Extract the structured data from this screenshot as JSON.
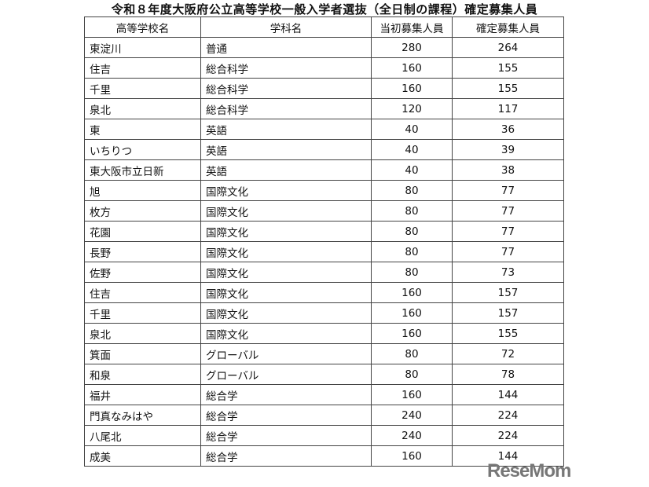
{
  "title": "令和８年度大阪府公立高等学校一般入学者選抜（全日制の課程）確定募集人員",
  "headers": [
    "高等学校名",
    "学科名",
    "当初募集人員",
    "確定募集人員"
  ],
  "rows": [
    [
      "東淀川",
      "普通",
      "280",
      "264"
    ],
    [
      "住吉",
      "総合科学",
      "160",
      "155"
    ],
    [
      "千里",
      "総合科学",
      "160",
      "155"
    ],
    [
      "泉北",
      "総合科学",
      "120",
      "117"
    ],
    [
      "東",
      "英語",
      "40",
      "36"
    ],
    [
      "いちりつ",
      "英語",
      "40",
      "39"
    ],
    [
      "東大阪市立日新",
      "英語",
      "40",
      "38"
    ],
    [
      "旭",
      "国際文化",
      "80",
      "77"
    ],
    [
      "枚方",
      "国際文化",
      "80",
      "77"
    ],
    [
      "花園",
      "国際文化",
      "80",
      "77"
    ],
    [
      "長野",
      "国際文化",
      "80",
      "77"
    ],
    [
      "佐野",
      "国際文化",
      "80",
      "73"
    ],
    [
      "住吉",
      "国際文化",
      "160",
      "157"
    ],
    [
      "千里",
      "国際文化",
      "160",
      "157"
    ],
    [
      "泉北",
      "国際文化",
      "160",
      "155"
    ],
    [
      "箕面",
      "グローバル",
      "80",
      "72"
    ],
    [
      "和泉",
      "グローバル",
      "80",
      "78"
    ],
    [
      "福井",
      "総合学",
      "160",
      "144"
    ],
    [
      "門真なみはや",
      "総合学",
      "240",
      "224"
    ],
    [
      "八尾北",
      "総合学",
      "240",
      "224"
    ],
    [
      "成美",
      "総合学",
      "160",
      "144"
    ]
  ],
  "watermark": "ReseMom"
}
